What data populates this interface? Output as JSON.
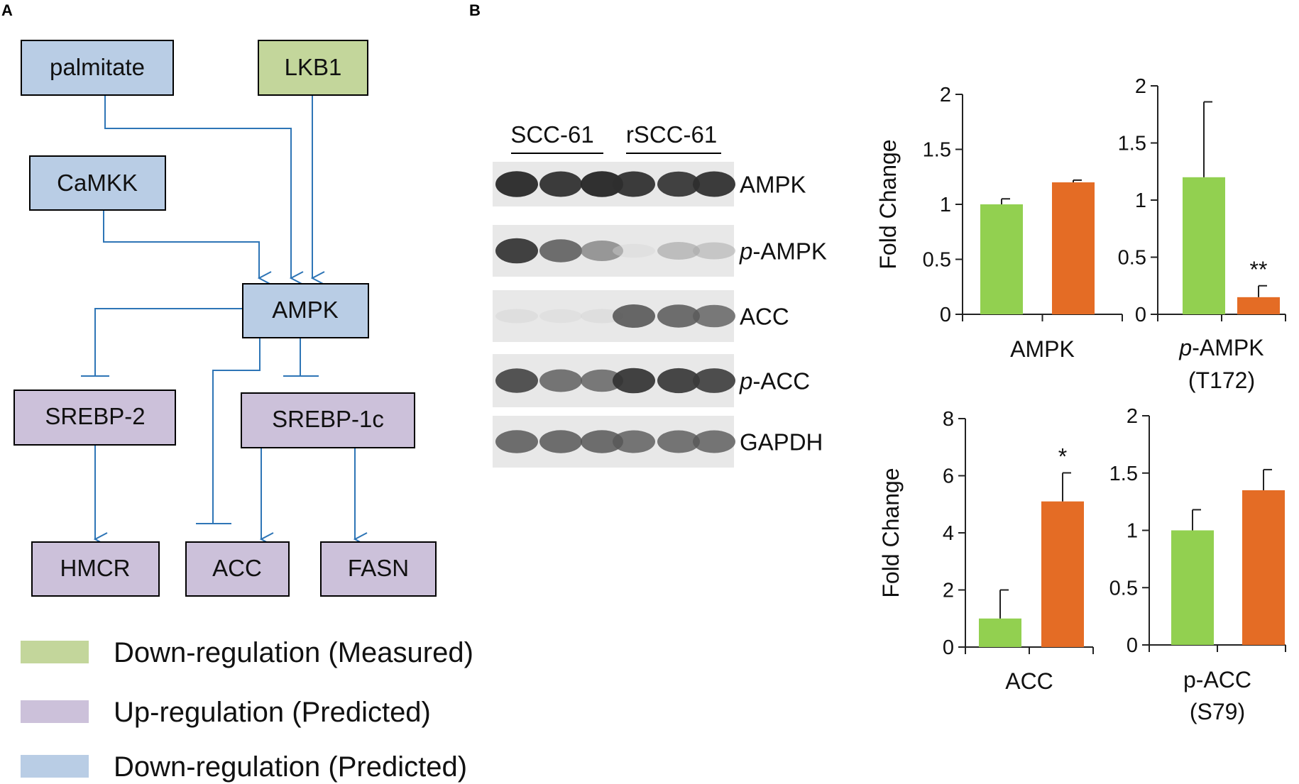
{
  "panels": {
    "a": "A",
    "b": "B"
  },
  "colors": {
    "blue_node": "#b9cde5",
    "green_node": "#c3d69b",
    "purple_node": "#ccc1da",
    "edge": "#2e75b6",
    "bar_green": "#92d050",
    "bar_orange": "#e46c25"
  },
  "network": {
    "nodes": {
      "palmitate": "palmitate",
      "lkb1": "LKB1",
      "camkk": "CaMKK",
      "ampk": "AMPK",
      "srebp2": "SREBP-2",
      "srebp1c": "SREBP-1c",
      "hmcr": "HMCR",
      "acc": "ACC",
      "fasn": "FASN"
    },
    "legend": [
      {
        "label": "Down-regulation (Measured)",
        "color": "#c3d69b"
      },
      {
        "label": "Up-regulation (Predicted)",
        "color": "#ccc1da"
      },
      {
        "label": "Down-regulation (Predicted)",
        "color": "#b9cde5"
      }
    ]
  },
  "blot": {
    "groups": [
      "SCC-61",
      "rSCC-61"
    ],
    "rows": [
      {
        "label_prefix": "",
        "label_rest": "AMPK",
        "intensities": [
          0.92,
          0.9,
          0.93,
          0.9,
          0.88,
          0.9
        ]
      },
      {
        "label_prefix": "p",
        "label_rest": "-AMPK",
        "intensities": [
          0.88,
          0.72,
          0.55,
          0.08,
          0.35,
          0.3
        ]
      },
      {
        "label_prefix": "",
        "label_rest": "ACC",
        "intensities": [
          0.1,
          0.08,
          0.1,
          0.75,
          0.72,
          0.68
        ]
      },
      {
        "label_prefix": "p",
        "label_rest": "-ACC",
        "intensities": [
          0.82,
          0.7,
          0.68,
          0.88,
          0.86,
          0.84
        ]
      },
      {
        "label_prefix": "",
        "label_rest": "GAPDH",
        "intensities": [
          0.72,
          0.72,
          0.72,
          0.7,
          0.7,
          0.7
        ]
      }
    ]
  },
  "chart_data": [
    {
      "type": "bar",
      "title": "",
      "xlabel_lines": [
        "AMPK"
      ],
      "xlabel_italic_prefix": "",
      "ylabel": "Fold Change",
      "ylim": [
        0,
        2
      ],
      "yticks": [
        "0",
        "0.5",
        "1",
        "1.5",
        "2"
      ],
      "values": [
        1.0,
        1.2
      ],
      "errors": [
        0.05,
        0.02
      ],
      "significance": ""
    },
    {
      "type": "bar",
      "title": "",
      "xlabel_lines": [
        "-AMPK",
        "(T172)"
      ],
      "xlabel_italic_prefix": "p",
      "ylabel": "",
      "ylim": [
        0,
        2
      ],
      "yticks": [
        "0",
        "0.5",
        "1",
        "1.5",
        "2"
      ],
      "values": [
        1.2,
        0.15
      ],
      "errors": [
        0.66,
        0.1
      ],
      "significance": "**"
    },
    {
      "type": "bar",
      "title": "",
      "xlabel_lines": [
        "ACC"
      ],
      "xlabel_italic_prefix": "",
      "ylabel": "Fold Change",
      "ylim": [
        0,
        8
      ],
      "yticks": [
        "0",
        "2",
        "4",
        "6",
        "8"
      ],
      "values": [
        1.0,
        5.1
      ],
      "errors": [
        1.0,
        1.0
      ],
      "significance": "*"
    },
    {
      "type": "bar",
      "title": "",
      "xlabel_lines": [
        "p-ACC",
        "(S79)"
      ],
      "xlabel_italic_prefix": "",
      "ylabel": "",
      "ylim": [
        0,
        2
      ],
      "yticks": [
        "0",
        "0.5",
        "1",
        "1.5",
        "2"
      ],
      "values": [
        1.0,
        1.35
      ],
      "errors": [
        0.18,
        0.18
      ],
      "significance": ""
    }
  ]
}
